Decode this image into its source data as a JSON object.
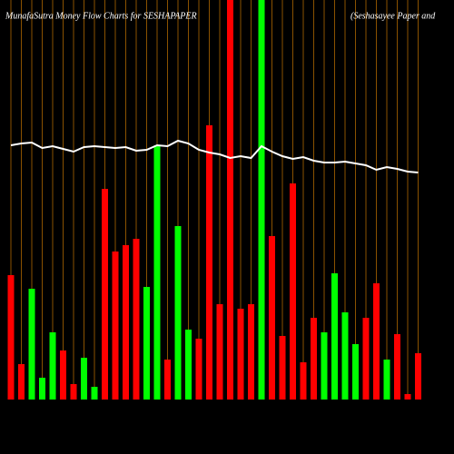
{
  "chart_data": {
    "type": "bar",
    "title": "MunafaSutra  Money  Flow  Charts for SESHAPAPER",
    "subtitle": "(Seshasayee   Paper   and",
    "categories": [
      null,
      null,
      null,
      null,
      null,
      null,
      null,
      null,
      null,
      null,
      null,
      null,
      null,
      null,
      null,
      null,
      null,
      null,
      null,
      null,
      null,
      null,
      null,
      null,
      null,
      null,
      null,
      null,
      null,
      null,
      null,
      null,
      null,
      null,
      null,
      null,
      null,
      null,
      null,
      null
    ],
    "series": [
      {
        "type": "bar",
        "colors": [
          "#ff0000",
          "#ff0000",
          "#00ff00",
          "#00ff00",
          "#00ff00",
          "#ff0000",
          "#ff0000",
          "#00ff00",
          "#00ff00",
          "#ff0000",
          "#ff0000",
          "#ff0000",
          "#ff0000",
          "#00ff00",
          "#00ff00",
          "#ff0000",
          "#00ff00",
          "#00ff00",
          "#ff0000",
          "#ff0000",
          "#ff0000",
          "#ff0000",
          "#ff0000",
          "#ff0000",
          "#00ff00",
          "#ff0000",
          "#ff0000",
          "#ff0000",
          "#ff0000",
          "#ff0000",
          "#00ff00",
          "#00ff00",
          "#00ff00",
          "#00ff00",
          "#ff0000",
          "#ff0000",
          "#00ff00",
          "#ff0000",
          "#ff0000",
          "#ff0000"
        ],
        "values": [
          137,
          39,
          122,
          24,
          74,
          54,
          17,
          46,
          14,
          232,
          163,
          170,
          177,
          124,
          280,
          44,
          191,
          77,
          67,
          302,
          105,
          440,
          100,
          105,
          440,
          180,
          70,
          238,
          41,
          90,
          74,
          139,
          96,
          61,
          90,
          128,
          44,
          72,
          6,
          51
        ]
      },
      {
        "type": "line",
        "color": "#ffffff",
        "values": [
          280,
          282,
          283,
          277,
          279,
          276,
          273,
          278,
          279,
          278,
          277,
          278,
          274,
          275,
          280,
          279,
          285,
          282,
          275,
          272,
          270,
          266,
          268,
          266,
          279,
          273,
          268,
          265,
          267,
          263,
          261,
          261,
          262,
          260,
          258,
          253,
          256,
          254,
          251,
          250
        ]
      }
    ],
    "ylim": [
      0,
      440
    ],
    "grid_color": "#8a5200"
  }
}
